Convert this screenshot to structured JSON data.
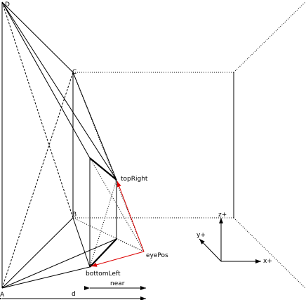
{
  "points": {
    "D": "D",
    "C": "C",
    "B": "B",
    "A": "A"
  },
  "labels": {
    "top_right": "topRight",
    "bottom_left": "bottomLeft",
    "eye_pos": "eyePos",
    "near": "near",
    "d": "d"
  },
  "axes": {
    "x": "x+",
    "y": "y+",
    "z": "z+"
  }
}
